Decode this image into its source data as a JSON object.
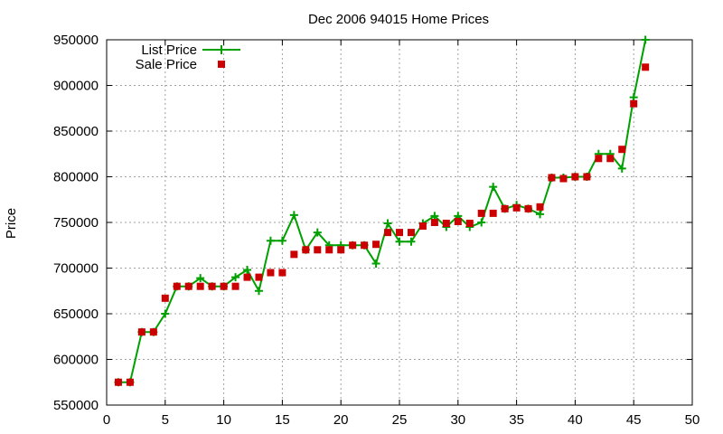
{
  "chart_data": {
    "type": "line",
    "title": "Dec 2006 94015 Home Prices",
    "xlabel": "",
    "ylabel": "Price",
    "xlim": [
      0,
      50
    ],
    "ylim": [
      550000,
      950000
    ],
    "x_ticks": [
      0,
      5,
      10,
      15,
      20,
      25,
      30,
      35,
      40,
      45,
      50
    ],
    "y_ticks": [
      550000,
      600000,
      650000,
      700000,
      750000,
      800000,
      850000,
      900000,
      950000
    ],
    "grid": true,
    "legend_position": "top-left",
    "series": [
      {
        "name": "List Price",
        "style": "line-with-plus-markers",
        "color": "#00a000",
        "x": [
          1,
          2,
          3,
          4,
          5,
          6,
          7,
          8,
          9,
          10,
          11,
          12,
          13,
          14,
          15,
          16,
          17,
          18,
          19,
          20,
          21,
          22,
          23,
          24,
          25,
          26,
          27,
          28,
          29,
          30,
          31,
          32,
          33,
          34,
          35,
          36,
          37,
          38,
          39,
          40,
          41,
          42,
          43,
          44,
          45,
          46
        ],
        "y": [
          575000,
          575000,
          630000,
          630000,
          650000,
          680000,
          680000,
          689000,
          680000,
          680000,
          690000,
          698000,
          675000,
          730000,
          730000,
          758000,
          720000,
          739000,
          725000,
          725000,
          725000,
          725000,
          705000,
          749000,
          729000,
          729000,
          749000,
          757000,
          745000,
          757000,
          745000,
          750000,
          789000,
          765000,
          769000,
          765000,
          759000,
          799000,
          799000,
          800000,
          800000,
          825000,
          825000,
          809000,
          887000,
          950000
        ]
      },
      {
        "name": "Sale Price",
        "style": "square-markers",
        "color": "#cc0000",
        "x": [
          1,
          2,
          3,
          4,
          5,
          6,
          7,
          8,
          9,
          10,
          11,
          12,
          13,
          14,
          15,
          16,
          17,
          18,
          19,
          20,
          21,
          22,
          23,
          24,
          25,
          26,
          27,
          28,
          29,
          30,
          31,
          32,
          33,
          34,
          35,
          36,
          37,
          38,
          39,
          40,
          41,
          42,
          43,
          44,
          45,
          46
        ],
        "y": [
          575000,
          575000,
          630000,
          630000,
          667000,
          680000,
          680000,
          680000,
          680000,
          680000,
          680000,
          690000,
          690000,
          695000,
          695000,
          715000,
          720000,
          720000,
          720000,
          720000,
          725000,
          725000,
          726000,
          739000,
          739000,
          739000,
          746000,
          750000,
          749000,
          751000,
          749000,
          760000,
          760000,
          765000,
          766000,
          765000,
          767000,
          799000,
          798000,
          800000,
          800000,
          820000,
          820000,
          830000,
          880000,
          920000
        ]
      }
    ]
  }
}
